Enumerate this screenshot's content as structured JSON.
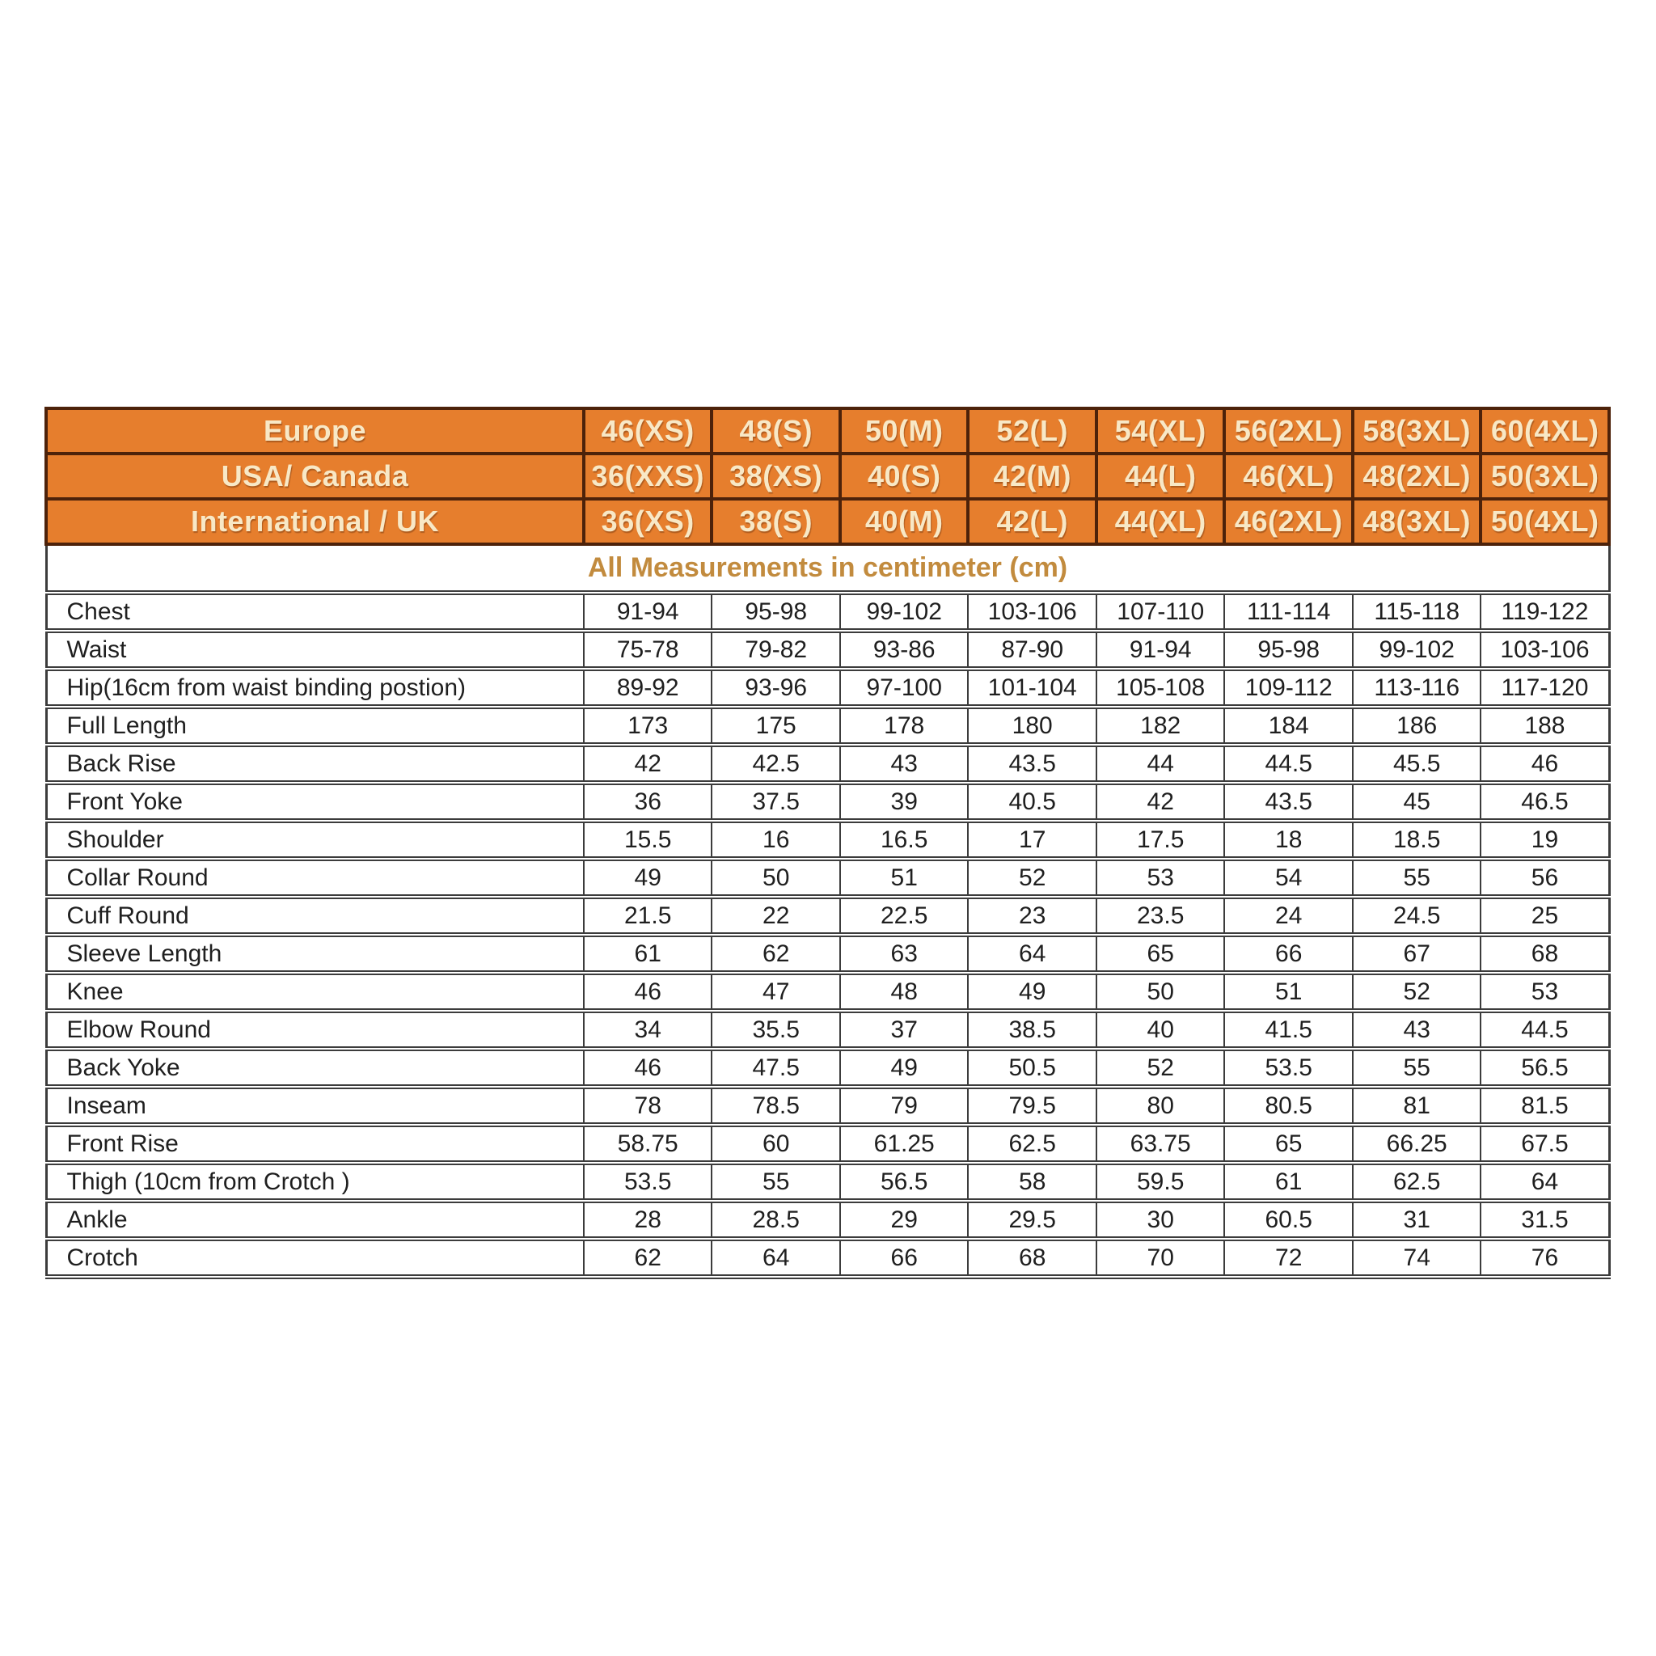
{
  "table": {
    "note": "All Measurements in centimeter (cm)",
    "size_rows": [
      {
        "label": "Europe",
        "sizes": [
          "46(XS)",
          "48(S)",
          "50(M)",
          "52(L)",
          "54(XL)",
          "56(2XL)",
          "58(3XL)",
          "60(4XL)"
        ]
      },
      {
        "label": "USA/ Canada",
        "sizes": [
          "36(XXS)",
          "38(XS)",
          "40(S)",
          "42(M)",
          "44(L)",
          "46(XL)",
          "48(2XL)",
          "50(3XL)"
        ]
      },
      {
        "label": "International / UK",
        "sizes": [
          "36(XS)",
          "38(S)",
          "40(M)",
          "42(L)",
          "44(XL)",
          "46(2XL)",
          "48(3XL)",
          "50(4XL)"
        ]
      }
    ],
    "measurement_rows": [
      {
        "label": "Chest",
        "values": [
          "91-94",
          "95-98",
          "99-102",
          "103-106",
          "107-110",
          "111-114",
          "115-118",
          "119-122"
        ]
      },
      {
        "label": "Waist",
        "values": [
          "75-78",
          "79-82",
          "93-86",
          "87-90",
          "91-94",
          "95-98",
          "99-102",
          "103-106"
        ]
      },
      {
        "label": "Hip(16cm from waist binding postion)",
        "values": [
          "89-92",
          "93-96",
          "97-100",
          "101-104",
          "105-108",
          "109-112",
          "113-116",
          "117-120"
        ]
      },
      {
        "label": "Full Length",
        "values": [
          "173",
          "175",
          "178",
          "180",
          "182",
          "184",
          "186",
          "188"
        ]
      },
      {
        "label": "Back Rise",
        "values": [
          "42",
          "42.5",
          "43",
          "43.5",
          "44",
          "44.5",
          "45.5",
          "46"
        ]
      },
      {
        "label": "Front Yoke",
        "values": [
          "36",
          "37.5",
          "39",
          "40.5",
          "42",
          "43.5",
          "45",
          "46.5"
        ]
      },
      {
        "label": "Shoulder",
        "values": [
          "15.5",
          "16",
          "16.5",
          "17",
          "17.5",
          "18",
          "18.5",
          "19"
        ]
      },
      {
        "label": "Collar Round",
        "values": [
          "49",
          "50",
          "51",
          "52",
          "53",
          "54",
          "55",
          "56"
        ]
      },
      {
        "label": "Cuff Round",
        "values": [
          "21.5",
          "22",
          "22.5",
          "23",
          "23.5",
          "24",
          "24.5",
          "25"
        ]
      },
      {
        "label": "Sleeve Length",
        "values": [
          "61",
          "62",
          "63",
          "64",
          "65",
          "66",
          "67",
          "68"
        ]
      },
      {
        "label": "Knee",
        "values": [
          "46",
          "47",
          "48",
          "49",
          "50",
          "51",
          "52",
          "53"
        ]
      },
      {
        "label": "Elbow Round",
        "values": [
          "34",
          "35.5",
          "37",
          "38.5",
          "40",
          "41.5",
          "43",
          "44.5"
        ]
      },
      {
        "label": "Back Yoke",
        "values": [
          "46",
          "47.5",
          "49",
          "50.5",
          "52",
          "53.5",
          "55",
          "56.5"
        ]
      },
      {
        "label": "Inseam",
        "values": [
          "78",
          "78.5",
          "79",
          "79.5",
          "80",
          "80.5",
          "81",
          "81.5"
        ]
      },
      {
        "label": "Front Rise",
        "values": [
          "58.75",
          "60",
          "61.25",
          "62.5",
          "63.75",
          "65",
          "66.25",
          "67.5"
        ]
      },
      {
        "label": "Thigh (10cm from Crotch )",
        "values": [
          "53.5",
          "55",
          "56.5",
          "58",
          "59.5",
          "61",
          "62.5",
          "64"
        ]
      },
      {
        "label": "Ankle",
        "values": [
          "28",
          "28.5",
          "29",
          "29.5",
          "30",
          "60.5",
          "31",
          "31.5"
        ]
      },
      {
        "label": "Crotch",
        "values": [
          "62",
          "64",
          "66",
          "68",
          "70",
          "72",
          "74",
          "76"
        ]
      }
    ],
    "colors": {
      "header_bg": "#e67e2d",
      "header_text": "#f8e8c6",
      "header_line": "#4d220a",
      "note_text": "#c28b3e",
      "grid_line": "#3c3c3c"
    }
  },
  "chart_data": {
    "type": "table",
    "title": "All Measurements in centimeter (cm)",
    "header_rows": [
      [
        "Europe",
        "46(XS)",
        "48(S)",
        "50(M)",
        "52(L)",
        "54(XL)",
        "56(2XL)",
        "58(3XL)",
        "60(4XL)"
      ],
      [
        "USA/ Canada",
        "36(XXS)",
        "38(XS)",
        "40(S)",
        "42(M)",
        "44(L)",
        "46(XL)",
        "48(2XL)",
        "50(3XL)"
      ],
      [
        "International / UK",
        "36(XS)",
        "38(S)",
        "40(M)",
        "42(L)",
        "44(XL)",
        "46(2XL)",
        "48(3XL)",
        "50(4XL)"
      ]
    ],
    "rows": [
      [
        "Chest",
        "91-94",
        "95-98",
        "99-102",
        "103-106",
        "107-110",
        "111-114",
        "115-118",
        "119-122"
      ],
      [
        "Waist",
        "75-78",
        "79-82",
        "93-86",
        "87-90",
        "91-94",
        "95-98",
        "99-102",
        "103-106"
      ],
      [
        "Hip(16cm from waist binding postion)",
        "89-92",
        "93-96",
        "97-100",
        "101-104",
        "105-108",
        "109-112",
        "113-116",
        "117-120"
      ],
      [
        "Full Length",
        "173",
        "175",
        "178",
        "180",
        "182",
        "184",
        "186",
        "188"
      ],
      [
        "Back Rise",
        "42",
        "42.5",
        "43",
        "43.5",
        "44",
        "44.5",
        "45.5",
        "46"
      ],
      [
        "Front Yoke",
        "36",
        "37.5",
        "39",
        "40.5",
        "42",
        "43.5",
        "45",
        "46.5"
      ],
      [
        "Shoulder",
        "15.5",
        "16",
        "16.5",
        "17",
        "17.5",
        "18",
        "18.5",
        "19"
      ],
      [
        "Collar Round",
        "49",
        "50",
        "51",
        "52",
        "53",
        "54",
        "55",
        "56"
      ],
      [
        "Cuff Round",
        "21.5",
        "22",
        "22.5",
        "23",
        "23.5",
        "24",
        "24.5",
        "25"
      ],
      [
        "Sleeve Length",
        "61",
        "62",
        "63",
        "64",
        "65",
        "66",
        "67",
        "68"
      ],
      [
        "Knee",
        "46",
        "47",
        "48",
        "49",
        "50",
        "51",
        "52",
        "53"
      ],
      [
        "Elbow Round",
        "34",
        "35.5",
        "37",
        "38.5",
        "40",
        "41.5",
        "43",
        "44.5"
      ],
      [
        "Back Yoke",
        "46",
        "47.5",
        "49",
        "50.5",
        "52",
        "53.5",
        "55",
        "56.5"
      ],
      [
        "Inseam",
        "78",
        "78.5",
        "79",
        "79.5",
        "80",
        "80.5",
        "81",
        "81.5"
      ],
      [
        "Front Rise",
        "58.75",
        "60",
        "61.25",
        "62.5",
        "63.75",
        "65",
        "66.25",
        "67.5"
      ],
      [
        "Thigh (10cm from Crotch )",
        "53.5",
        "55",
        "56.5",
        "58",
        "59.5",
        "61",
        "62.5",
        "64"
      ],
      [
        "Ankle",
        "28",
        "28.5",
        "29",
        "29.5",
        "30",
        "60.5",
        "31",
        "31.5"
      ],
      [
        "Crotch",
        "62",
        "64",
        "66",
        "68",
        "70",
        "72",
        "74",
        "76"
      ]
    ]
  }
}
